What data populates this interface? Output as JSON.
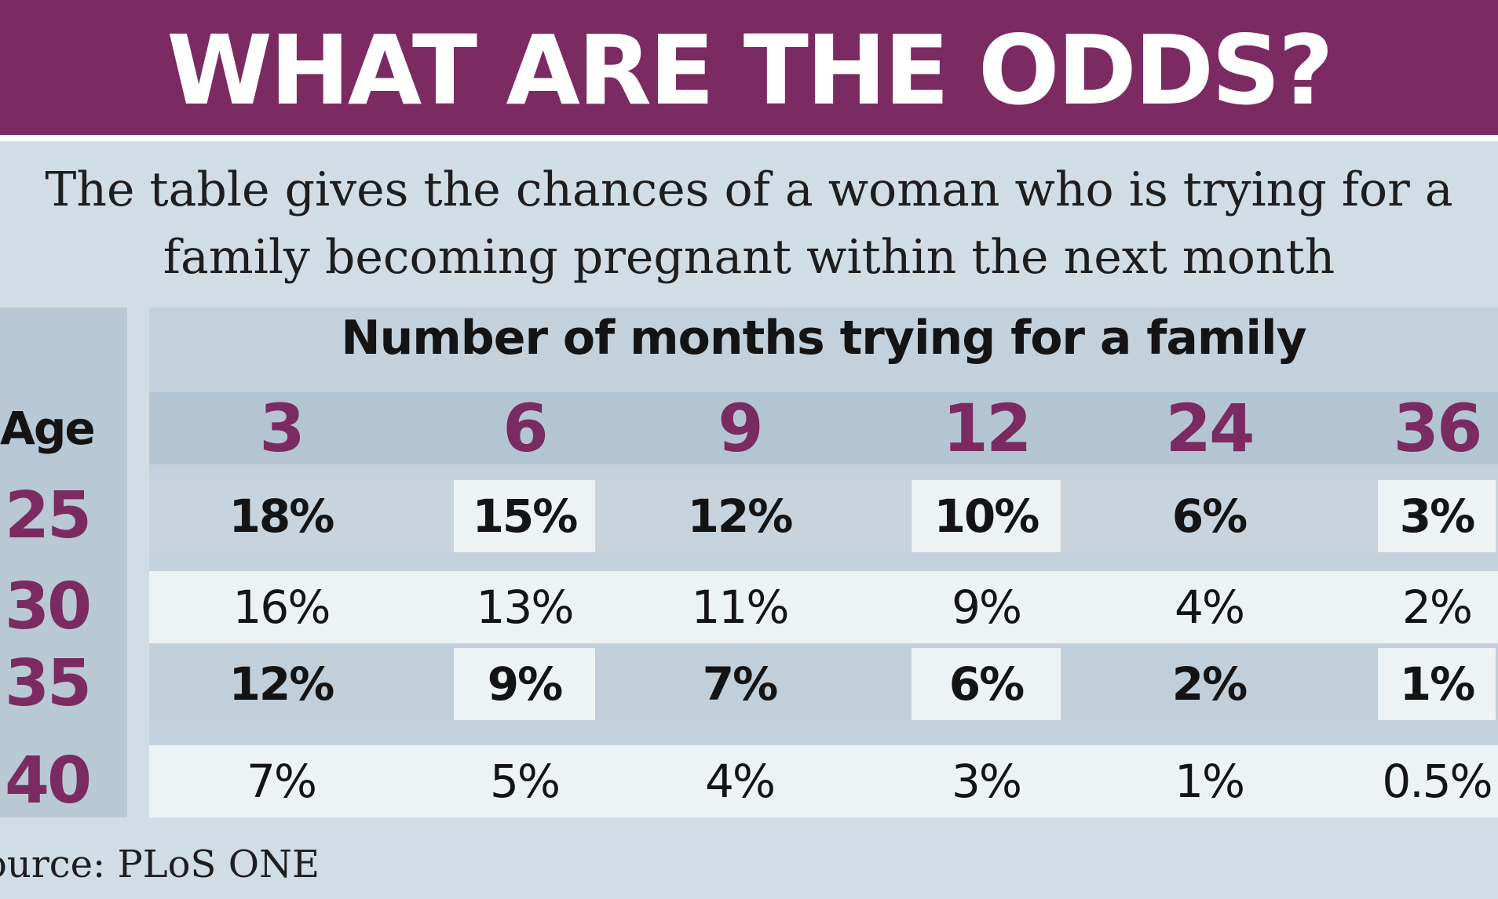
{
  "title": "WHAT ARE THE ODDS?",
  "subtitle_lines": [
    "The table gives the chances of a woman who is trying for a",
    "family becoming pregnant within the next month"
  ],
  "source": "ource: PLoS ONE",
  "colors": {
    "banner": "#7b2b62",
    "accent_numbers": "#7b2b62",
    "background": "#d1dde5",
    "light_cell": "#edf2f5"
  },
  "chart_data": {
    "type": "table",
    "title": "WHAT ARE THE ODDS?",
    "column_group_label": "Number of months trying for a family",
    "row_header_label": "Age",
    "columns": [
      "3",
      "6",
      "9",
      "12",
      "24",
      "36"
    ],
    "rows": [
      {
        "age": "25",
        "cells": [
          "18%",
          "15%",
          "12%",
          "10%",
          "6%",
          "3%"
        ]
      },
      {
        "age": "30",
        "cells": [
          "16%",
          "13%",
          "11%",
          "9%",
          "4%",
          "2%"
        ]
      },
      {
        "age": "35",
        "cells": [
          "12%",
          "9%",
          "7%",
          "6%",
          "2%",
          "1%"
        ]
      },
      {
        "age": "40",
        "cells": [
          "7%",
          "5%",
          "4%",
          "3%",
          "1%",
          "0.5%"
        ]
      }
    ],
    "values": [
      [
        18,
        15,
        12,
        10,
        6,
        3
      ],
      [
        16,
        13,
        11,
        9,
        4,
        2
      ],
      [
        12,
        9,
        7,
        6,
        2,
        1
      ],
      [
        7,
        5,
        4,
        3,
        1,
        0.5
      ]
    ],
    "unit": "%"
  }
}
